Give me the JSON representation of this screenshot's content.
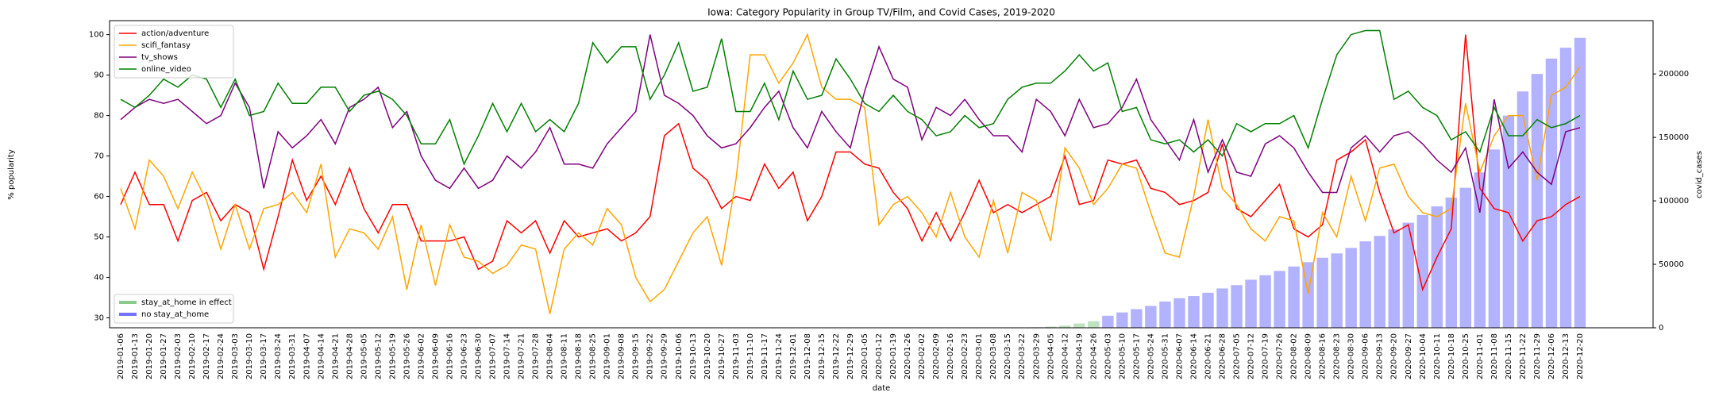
{
  "chart_data": {
    "type": "line",
    "title": "Iowa: Category Popularity in Group TV/Film, and Covid Cases, 2019-2020",
    "xlabel": "date",
    "ylabel": "% popularity",
    "y2label": "covid_cases",
    "categories": [
      "2019-01-06",
      "2019-01-13",
      "2019-01-20",
      "2019-01-27",
      "2019-02-03",
      "2019-02-10",
      "2019-02-17",
      "2019-02-24",
      "2019-03-03",
      "2019-03-10",
      "2019-03-17",
      "2019-03-24",
      "2019-03-31",
      "2019-04-07",
      "2019-04-14",
      "2019-04-21",
      "2019-04-28",
      "2019-05-05",
      "2019-05-12",
      "2019-05-19",
      "2019-05-26",
      "2019-06-02",
      "2019-06-09",
      "2019-06-16",
      "2019-06-23",
      "2019-06-30",
      "2019-07-07",
      "2019-07-14",
      "2019-07-21",
      "2019-07-28",
      "2019-08-04",
      "2019-08-11",
      "2019-08-18",
      "2019-08-25",
      "2019-09-01",
      "2019-09-08",
      "2019-09-15",
      "2019-09-22",
      "2019-09-29",
      "2019-10-06",
      "2019-10-13",
      "2019-10-20",
      "2019-10-27",
      "2019-11-03",
      "2019-11-10",
      "2019-11-17",
      "2019-11-24",
      "2019-12-01",
      "2019-12-08",
      "2019-12-15",
      "2019-12-22",
      "2019-12-29",
      "2020-01-05",
      "2020-01-12",
      "2020-01-19",
      "2020-01-26",
      "2020-02-02",
      "2020-02-09",
      "2020-02-16",
      "2020-02-23",
      "2020-03-01",
      "2020-03-08",
      "2020-03-15",
      "2020-03-22",
      "2020-03-29",
      "2020-04-05",
      "2020-04-12",
      "2020-04-19",
      "2020-04-26",
      "2020-05-03",
      "2020-05-10",
      "2020-05-17",
      "2020-05-24",
      "2020-05-31",
      "2020-06-07",
      "2020-06-14",
      "2020-06-21",
      "2020-06-28",
      "2020-07-05",
      "2020-07-12",
      "2020-07-19",
      "2020-07-26",
      "2020-08-02",
      "2020-08-09",
      "2020-08-16",
      "2020-08-23",
      "2020-08-30",
      "2020-09-06",
      "2020-09-13",
      "2020-09-20",
      "2020-09-27",
      "2020-10-04",
      "2020-10-11",
      "2020-10-18",
      "2020-10-25",
      "2020-11-01",
      "2020-11-08",
      "2020-11-15",
      "2020-11-22",
      "2020-11-29",
      "2020-12-06",
      "2020-12-13",
      "2020-12-20"
    ],
    "ylim": [
      27.55,
      103.45
    ],
    "yticks": [
      30,
      40,
      50,
      60,
      70,
      80,
      90,
      100
    ],
    "y2lim": [
      0,
      242000
    ],
    "y2ticks": [
      0,
      50000,
      100000,
      150000,
      200000
    ],
    "legend": "upper left",
    "bar_legend": "lower left",
    "series": [
      {
        "name": "action/adventure",
        "color": "#ff0000",
        "values": [
          58,
          66,
          58,
          58,
          49,
          59,
          61,
          54,
          58,
          56,
          42,
          55,
          69,
          59,
          65,
          58,
          67,
          57,
          51,
          58,
          58,
          49,
          49,
          49,
          50,
          42,
          44,
          54,
          51,
          54,
          46,
          54,
          50,
          51,
          52,
          49,
          51,
          55,
          75,
          78,
          67,
          64,
          57,
          60,
          59,
          68,
          62,
          66,
          54,
          60,
          71,
          71,
          68,
          67,
          61,
          57,
          49,
          56,
          49,
          56,
          64,
          56,
          58,
          56,
          58,
          60,
          70,
          58,
          59,
          69,
          68,
          69,
          62,
          61,
          58,
          59,
          61,
          73,
          57,
          55,
          59,
          63,
          52,
          50,
          53,
          69,
          71,
          74,
          61,
          51,
          53,
          37,
          45,
          52,
          100,
          62,
          57,
          56,
          49,
          54,
          55,
          58,
          60
        ]
      },
      {
        "name": "scifi_fantasy",
        "color": "#ffa500",
        "values": [
          62,
          52,
          69,
          65,
          57,
          66,
          59,
          47,
          58,
          47,
          57,
          58,
          61,
          56,
          68,
          45,
          52,
          51,
          47,
          55,
          37,
          53,
          38,
          53,
          45,
          44,
          41,
          43,
          48,
          47,
          31,
          47,
          51,
          48,
          57,
          53,
          40,
          34,
          37,
          44,
          51,
          55,
          43,
          64,
          95,
          95,
          88,
          93,
          100,
          87,
          84,
          84,
          82,
          53,
          58,
          60,
          56,
          50,
          61,
          50,
          45,
          59,
          46,
          61,
          59,
          49,
          72,
          67,
          58,
          62,
          68,
          67,
          56,
          46,
          45,
          60,
          79,
          62,
          58,
          52,
          49,
          55,
          54,
          36,
          56,
          50,
          65,
          54,
          67,
          68,
          60,
          56,
          55,
          57,
          83,
          66,
          75,
          80,
          80,
          64,
          85,
          87,
          92
        ]
      },
      {
        "name": "tv_shows",
        "color": "#800080",
        "values": [
          79,
          82,
          84,
          83,
          84,
          81,
          78,
          80,
          88,
          82,
          62,
          76,
          72,
          75,
          79,
          73,
          82,
          84,
          87,
          77,
          81,
          70,
          64,
          62,
          67,
          62,
          64,
          70,
          67,
          71,
          77,
          68,
          68,
          67,
          73,
          77,
          81,
          100,
          85,
          83,
          80,
          75,
          72,
          73,
          77,
          82,
          86,
          77,
          72,
          81,
          76,
          72,
          86,
          97,
          89,
          87,
          74,
          82,
          80,
          84,
          79,
          75,
          75,
          71,
          84,
          81,
          75,
          84,
          77,
          78,
          82,
          89,
          79,
          74,
          69,
          79,
          66,
          74,
          66,
          65,
          73,
          75,
          72,
          66,
          61,
          61,
          72,
          75,
          71,
          75,
          76,
          73,
          69,
          66,
          72,
          56,
          84,
          67,
          71,
          66,
          63,
          76,
          77
        ]
      },
      {
        "name": "online_video",
        "color": "#008000",
        "values": [
          84,
          82,
          85,
          89,
          87,
          90,
          89,
          82,
          89,
          80,
          81,
          88,
          83,
          83,
          87,
          87,
          81,
          85,
          86,
          84,
          80,
          73,
          73,
          79,
          68,
          75,
          83,
          76,
          83,
          76,
          79,
          76,
          83,
          98,
          93,
          97,
          97,
          84,
          90,
          98,
          86,
          87,
          99,
          81,
          81,
          88,
          79,
          91,
          84,
          85,
          94,
          89,
          83,
          81,
          85,
          81,
          79,
          75,
          76,
          80,
          77,
          78,
          84,
          87,
          88,
          88,
          91,
          95,
          91,
          93,
          81,
          82,
          74,
          73,
          74,
          71,
          74,
          70,
          78,
          76,
          78,
          78,
          80,
          72,
          84,
          95,
          100,
          101,
          101,
          84,
          86,
          82,
          80,
          74,
          76,
          71,
          82,
          75,
          75,
          79,
          77,
          78,
          80
        ]
      },
      {
        "name": "stay_at_home in effect",
        "color": "#2ca02c",
        "type": "bar",
        "axis": "y2",
        "values": [
          null,
          null,
          null,
          null,
          null,
          null,
          null,
          null,
          null,
          null,
          null,
          null,
          null,
          null,
          null,
          null,
          null,
          null,
          null,
          null,
          null,
          null,
          null,
          null,
          null,
          null,
          null,
          null,
          null,
          null,
          null,
          null,
          null,
          null,
          null,
          null,
          null,
          null,
          null,
          null,
          null,
          null,
          null,
          null,
          null,
          null,
          null,
          null,
          null,
          null,
          null,
          null,
          null,
          null,
          null,
          null,
          null,
          null,
          null,
          null,
          null,
          null,
          null,
          null,
          null,
          860,
          1700,
          3400,
          5200,
          null,
          null,
          null,
          null,
          null,
          null,
          null,
          null,
          null,
          null,
          null,
          null,
          null,
          null,
          null,
          null,
          null,
          null,
          null,
          null,
          null,
          null,
          null,
          null,
          null,
          null,
          null,
          null,
          null,
          null,
          null,
          null,
          null,
          null
        ]
      },
      {
        "name": "no stay_at_home",
        "color": "#0000ff",
        "type": "bar",
        "axis": "y2",
        "values": [
          null,
          null,
          null,
          null,
          null,
          null,
          null,
          null,
          null,
          null,
          null,
          null,
          null,
          null,
          null,
          null,
          null,
          null,
          null,
          null,
          null,
          null,
          null,
          null,
          null,
          null,
          null,
          null,
          null,
          null,
          null,
          null,
          null,
          null,
          null,
          null,
          null,
          null,
          null,
          null,
          null,
          null,
          null,
          null,
          null,
          null,
          null,
          null,
          null,
          null,
          null,
          null,
          0,
          0,
          0,
          0,
          0,
          0,
          0,
          0,
          0,
          0,
          20,
          100,
          400,
          null,
          null,
          null,
          null,
          9500,
          12100,
          14700,
          17200,
          20700,
          23300,
          25000,
          27600,
          31000,
          33600,
          37900,
          41400,
          44800,
          48300,
          51700,
          55200,
          58600,
          62900,
          68100,
          72400,
          77600,
          82800,
          88800,
          95700,
          102600,
          110300,
          122400,
          140500,
          167200,
          186200,
          200000,
          212100,
          220700,
          228400
        ]
      }
    ]
  }
}
